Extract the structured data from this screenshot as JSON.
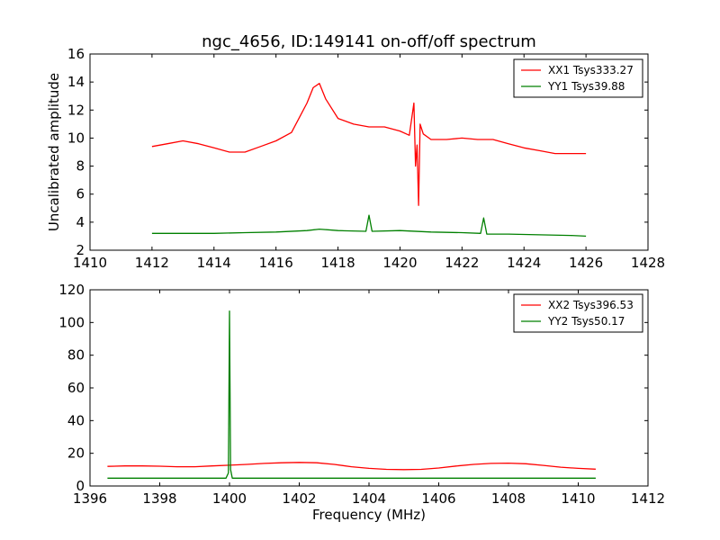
{
  "chart_data": [
    {
      "type": "line",
      "title": "ngc_4656, ID:149141 on-off/off spectrum",
      "xlabel": "",
      "ylabel": "Uncalibrated amplitude",
      "xlim": [
        1410,
        1428
      ],
      "ylim": [
        2,
        16
      ],
      "xticks": [
        "1410",
        "1412",
        "1414",
        "1416",
        "1418",
        "1420",
        "1422",
        "1424",
        "1426",
        "1428"
      ],
      "yticks": [
        "2",
        "4",
        "6",
        "8",
        "10",
        "12",
        "14",
        "16"
      ],
      "legend_position": "upper-right",
      "series": [
        {
          "name": "XX1 Tsys333.27",
          "color": "#ff0000",
          "x": [
            1412.0,
            1412.5,
            1413.0,
            1413.5,
            1414.0,
            1414.5,
            1415.0,
            1415.5,
            1416.0,
            1416.5,
            1417.0,
            1417.2,
            1417.4,
            1417.6,
            1418.0,
            1418.5,
            1419.0,
            1419.5,
            1420.0,
            1420.3,
            1420.45,
            1420.5,
            1420.55,
            1420.6,
            1420.65,
            1420.75,
            1421.0,
            1421.5,
            1422.0,
            1422.5,
            1423.0,
            1423.5,
            1424.0,
            1424.5,
            1425.0,
            1425.5,
            1426.0
          ],
          "y": [
            9.4,
            9.6,
            9.8,
            9.6,
            9.3,
            9.0,
            9.0,
            9.4,
            9.8,
            10.4,
            12.5,
            13.6,
            13.9,
            12.8,
            11.4,
            11.0,
            10.8,
            10.8,
            10.5,
            10.2,
            12.5,
            8.0,
            9.5,
            5.2,
            11.0,
            10.3,
            9.9,
            9.9,
            10.0,
            9.9,
            9.9,
            9.6,
            9.3,
            9.1,
            8.9,
            8.9,
            8.9
          ]
        },
        {
          "name": "YY1 Tsys39.88",
          "color": "#008000",
          "x": [
            1412.0,
            1413.0,
            1414.0,
            1415.0,
            1416.0,
            1417.0,
            1417.4,
            1418.0,
            1418.9,
            1419.0,
            1419.1,
            1420.0,
            1421.0,
            1422.0,
            1422.6,
            1422.7,
            1422.8,
            1423.5,
            1424.5,
            1425.5,
            1426.0
          ],
          "y": [
            3.2,
            3.2,
            3.2,
            3.25,
            3.3,
            3.4,
            3.5,
            3.4,
            3.35,
            4.5,
            3.35,
            3.4,
            3.3,
            3.25,
            3.2,
            4.3,
            3.15,
            3.15,
            3.1,
            3.05,
            3.0
          ]
        }
      ]
    },
    {
      "type": "line",
      "title": "",
      "xlabel": "Frequency (MHz)",
      "ylabel": "",
      "xlim": [
        1396,
        1412
      ],
      "ylim": [
        0,
        120
      ],
      "xticks": [
        "1396",
        "1398",
        "1400",
        "1402",
        "1404",
        "1406",
        "1408",
        "1410",
        "1412"
      ],
      "yticks": [
        "0",
        "20",
        "40",
        "60",
        "80",
        "100",
        "120"
      ],
      "legend_position": "upper-right",
      "series": [
        {
          "name": "XX2 Tsys396.53",
          "color": "#ff0000",
          "x": [
            1396.5,
            1397.0,
            1397.5,
            1398.0,
            1398.5,
            1399.0,
            1399.5,
            1400.0,
            1400.5,
            1401.0,
            1401.5,
            1402.0,
            1402.5,
            1403.0,
            1403.5,
            1404.0,
            1404.5,
            1405.0,
            1405.5,
            1406.0,
            1406.5,
            1407.0,
            1407.5,
            1408.0,
            1408.5,
            1409.0,
            1409.5,
            1410.0,
            1410.5
          ],
          "y": [
            12.0,
            12.3,
            12.3,
            12.1,
            11.8,
            11.8,
            12.3,
            12.7,
            13.2,
            13.8,
            14.2,
            14.4,
            14.2,
            13.2,
            11.8,
            10.8,
            10.2,
            10.0,
            10.2,
            11.0,
            12.2,
            13.2,
            13.8,
            14.0,
            13.6,
            12.6,
            11.5,
            10.8,
            10.3
          ]
        },
        {
          "name": "YY2 Tsys50.17",
          "color": "#008000",
          "x": [
            1396.5,
            1398.0,
            1399.9,
            1399.97,
            1400.0,
            1400.03,
            1400.08,
            1401.0,
            1403.0,
            1405.0,
            1407.0,
            1409.0,
            1410.5
          ],
          "y": [
            4.8,
            4.8,
            4.8,
            8.0,
            107.0,
            10.0,
            4.8,
            4.8,
            4.8,
            4.8,
            4.8,
            4.8,
            4.8
          ]
        }
      ]
    }
  ]
}
